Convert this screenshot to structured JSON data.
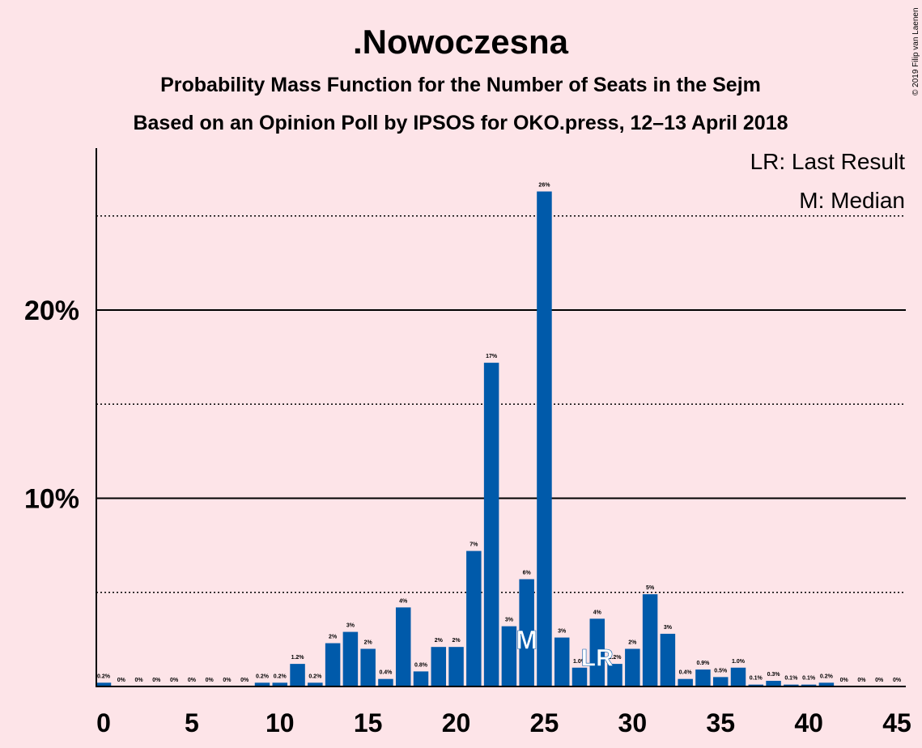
{
  "copyright": "© 2019 Filip van Laenen",
  "chart_data": {
    "type": "bar",
    "title": ".Nowoczesna",
    "subtitle": "Probability Mass Function for the Number of Seats in the Sejm",
    "subtitle2": "Based on an Opinion Poll by IPSOS for OKO.press, 12–13 April 2018",
    "legend": {
      "last_result": "LR: Last Result",
      "median": "M: Median",
      "placement": "top-right"
    },
    "markers": {
      "median_label": "M",
      "median_seat": 24,
      "last_result_label": "LR",
      "last_result_seat": 28
    },
    "bar_color": "#005aaa",
    "x": [
      0,
      1,
      2,
      3,
      4,
      5,
      6,
      7,
      8,
      9,
      10,
      11,
      12,
      13,
      14,
      15,
      16,
      17,
      18,
      19,
      20,
      21,
      22,
      23,
      24,
      25,
      26,
      27,
      28,
      29,
      30,
      31,
      32,
      33,
      34,
      35,
      36,
      37,
      38,
      39,
      40,
      41,
      42,
      43,
      44,
      45
    ],
    "values": [
      0.2,
      0,
      0,
      0,
      0,
      0,
      0,
      0,
      0,
      0.2,
      0.2,
      1.2,
      0.2,
      2.3,
      2.9,
      2.0,
      0.4,
      4.2,
      0.8,
      2.1,
      2.1,
      7.2,
      17.2,
      3.2,
      5.7,
      26.3,
      2.6,
      1.0,
      3.6,
      1.2,
      2.0,
      4.9,
      2.8,
      0.4,
      0.9,
      0.5,
      1.0,
      0.1,
      0.3,
      0.1,
      0.1,
      0.2,
      0,
      0,
      0,
      0
    ],
    "labels": [
      "0.2%",
      "0%",
      "0%",
      "0%",
      "0%",
      "0%",
      "0%",
      "0%",
      "0%",
      "0.2%",
      "0.2%",
      "1.2%",
      "0.2%",
      "2%",
      "3%",
      "2%",
      "0.4%",
      "4%",
      "0.8%",
      "2%",
      "2%",
      "7%",
      "17%",
      "3%",
      "6%",
      "26%",
      "3%",
      "1.0%",
      "4%",
      "1.2%",
      "2%",
      "5%",
      "3%",
      "0.4%",
      "0.9%",
      "0.5%",
      "1.0%",
      "0.1%",
      "0.3%",
      "0.1%",
      "0.1%",
      "0.2%",
      "0%",
      "0%",
      "0%",
      "0%"
    ],
    "xticks": [
      "0",
      "5",
      "10",
      "15",
      "20",
      "25",
      "30",
      "35",
      "40",
      "45"
    ],
    "yticks": [
      "10%",
      "20%"
    ],
    "ylim": [
      0,
      28.6
    ],
    "xlim": [
      -0.5,
      45.5
    ],
    "solid_gridlines": [
      10,
      20
    ],
    "dotted_gridlines": [
      5,
      15,
      25
    ]
  }
}
